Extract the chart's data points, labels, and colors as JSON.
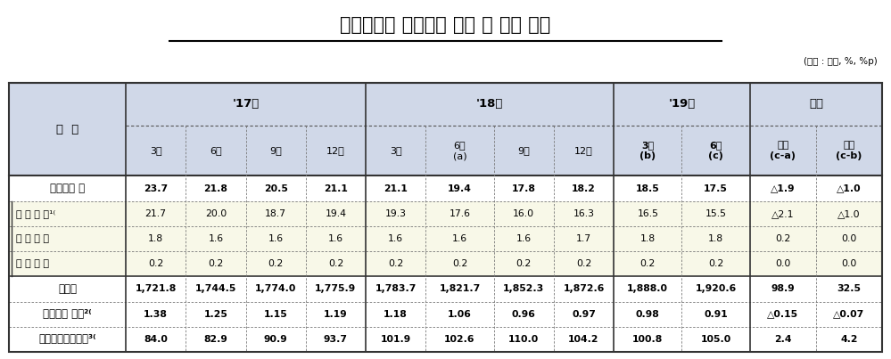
{
  "title": "국내은행의 부실채권 규모 및 비율 추이",
  "unit_label": "(단위 : 조원, %, %p)",
  "header_row1": [
    "구  분",
    "'17년",
    "'18년",
    "'19년",
    "증감"
  ],
  "header_row2": [
    "",
    "3말",
    "6말",
    "9말",
    "12말",
    "3말",
    "6말\n(a)",
    "9말",
    "12말",
    "3말\n(b)",
    "6말\n(c)",
    "연간\n(c-a)",
    "분기\n(c-b)"
  ],
  "col_spans_row1": [
    1,
    4,
    4,
    2,
    2
  ],
  "rows": [
    {
      "label": "부실채권 게",
      "values": [
        "23.7",
        "21.8",
        "20.5",
        "21.1",
        "21.1",
        "19.4",
        "17.8",
        "18.2",
        "18.5",
        "17.5",
        "△1.9",
        "△1.0"
      ],
      "bold": true,
      "indent": false,
      "bg": "white"
    },
    {
      "label": "기 업 여 신¹⁽",
      "values": [
        "21.7",
        "20.0",
        "18.7",
        "19.4",
        "19.3",
        "17.6",
        "16.0",
        "16.3",
        "16.5",
        "15.5",
        "△2.1",
        "△1.0"
      ],
      "bold": false,
      "indent": true,
      "bg": "#fffff0"
    },
    {
      "label": "가 계 여 신",
      "values": [
        "1.8",
        "1.6",
        "1.6",
        "1.6",
        "1.6",
        "1.6",
        "1.6",
        "1.7",
        "1.8",
        "1.8",
        "0.2",
        "0.0"
      ],
      "bold": false,
      "indent": true,
      "bg": "#fffff0"
    },
    {
      "label": "신 용 카 드",
      "values": [
        "0.2",
        "0.2",
        "0.2",
        "0.2",
        "0.2",
        "0.2",
        "0.2",
        "0.2",
        "0.2",
        "0.2",
        "0.0",
        "0.0"
      ],
      "bold": false,
      "indent": true,
      "bg": "#fffff0"
    },
    {
      "label": "총여신",
      "values": [
        "1,721.8",
        "1,744.5",
        "1,774.0",
        "1,775.9",
        "1,783.7",
        "1,821.7",
        "1,852.3",
        "1,872.6",
        "1,888.0",
        "1,920.6",
        "98.9",
        "32.5"
      ],
      "bold": true,
      "indent": false,
      "bg": "white"
    },
    {
      "label": "부실채권 비율²⁽",
      "values": [
        "1.38",
        "1.25",
        "1.15",
        "1.19",
        "1.18",
        "1.06",
        "0.96",
        "0.97",
        "0.98",
        "0.91",
        "△0.15",
        "△0.07"
      ],
      "bold": true,
      "indent": false,
      "bg": "white"
    },
    {
      "label": "대손충당금적립률³⁽",
      "values": [
        "84.0",
        "82.9",
        "90.9",
        "93.7",
        "101.9",
        "102.6",
        "110.0",
        "104.2",
        "100.8",
        "105.0",
        "2.4",
        "4.2"
      ],
      "bold": true,
      "indent": false,
      "bg": "white"
    }
  ],
  "header_bg": "#d0d8e8",
  "header_bg2": "#c8d4e8",
  "indent_bg": "#f8f8e8",
  "bold_row_bg": "#ffffff",
  "border_color": "#333333",
  "dotted_color": "#888888",
  "title_color": "#000000",
  "text_color": "#000000"
}
